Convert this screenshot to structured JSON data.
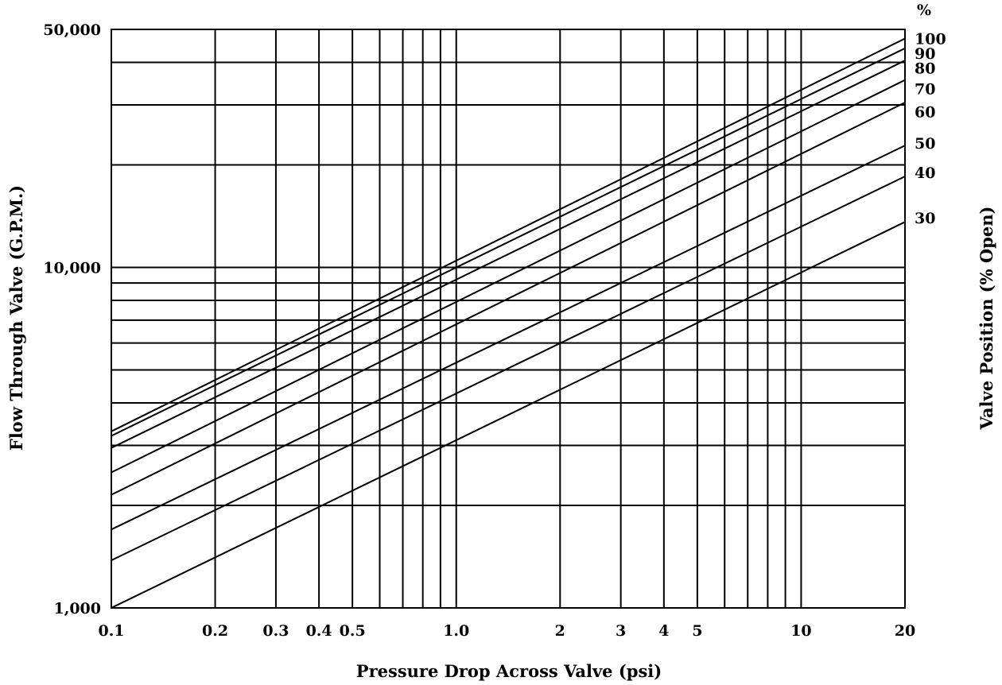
{
  "chart_data": {
    "type": "line",
    "xscale": "log",
    "yscale": "log",
    "xlabel": "Pressure Drop Across Valve (psi)",
    "ylabel": "Flow Through Valve (G.P.M.)",
    "y2label": "Valve Position (% Open)",
    "xlim": [
      0.1,
      20
    ],
    "ylim": [
      1000,
      50000
    ],
    "grid": true,
    "x_ticks": [
      {
        "value": 0.1,
        "label": "0.1"
      },
      {
        "value": 0.2,
        "label": "0.2"
      },
      {
        "value": 0.3,
        "label": "0.3"
      },
      {
        "value": 0.4,
        "label": "0.4"
      },
      {
        "value": 0.5,
        "label": "0.5"
      },
      {
        "value": 1.0,
        "label": "1.0"
      },
      {
        "value": 2,
        "label": "2"
      },
      {
        "value": 3,
        "label": "3"
      },
      {
        "value": 4,
        "label": "4"
      },
      {
        "value": 5,
        "label": "5"
      },
      {
        "value": 10,
        "label": "10"
      },
      {
        "value": 20,
        "label": "20"
      }
    ],
    "x_gridlines": [
      0.1,
      0.2,
      0.3,
      0.4,
      0.5,
      0.6,
      0.7,
      0.8,
      0.9,
      1,
      2,
      3,
      4,
      5,
      6,
      7,
      8,
      9,
      10,
      20
    ],
    "y_ticks": [
      {
        "value": 1000,
        "label": "1,000"
      },
      {
        "value": 10000,
        "label": "10,000"
      },
      {
        "value": 50000,
        "label": "50,000"
      }
    ],
    "y_gridlines": [
      1000,
      2000,
      3000,
      4000,
      5000,
      6000,
      7000,
      8000,
      9000,
      10000,
      20000,
      30000,
      40000,
      50000
    ],
    "right_axis_header": "%",
    "series": [
      {
        "name": "100",
        "x": [
          0.1,
          20
        ],
        "y": [
          3300,
          47000
        ]
      },
      {
        "name": "90",
        "x": [
          0.1,
          20
        ],
        "y": [
          3200,
          44000
        ]
      },
      {
        "name": "80",
        "x": [
          0.1,
          20
        ],
        "y": [
          2950,
          40500
        ]
      },
      {
        "name": "70",
        "x": [
          0.1,
          20
        ],
        "y": [
          2500,
          35500
        ]
      },
      {
        "name": "60",
        "x": [
          0.1,
          20
        ],
        "y": [
          2150,
          30500
        ]
      },
      {
        "name": "50",
        "x": [
          0.1,
          20
        ],
        "y": [
          1700,
          22800
        ]
      },
      {
        "name": "40",
        "x": [
          0.1,
          20
        ],
        "y": [
          1380,
          18500
        ]
      },
      {
        "name": "30",
        "x": [
          0.1,
          20
        ],
        "y": [
          1000,
          13600
        ]
      }
    ],
    "series_label_positions_y": [
      47000,
      42500,
      38500,
      33500,
      28700,
      23200,
      19000,
      14000
    ]
  }
}
